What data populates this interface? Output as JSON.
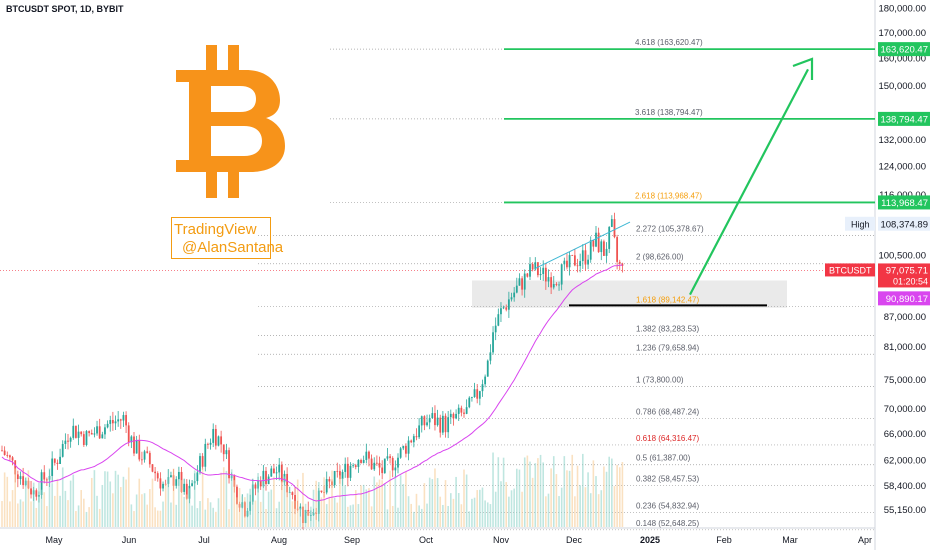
{
  "header": {
    "symbol_title": "BTCUSDT SPOT, 1D, BYBIT"
  },
  "watermark": {
    "line1": "TradingView",
    "line2": "@AlanSantana"
  },
  "colors": {
    "up": "#26a69a",
    "down": "#ef5350",
    "fib_green": "#22c55e",
    "ma": "#d946ef",
    "price_label": "#f23645",
    "arrow": "#22c55e",
    "bitcoin": "#f7931a",
    "wedge": "#3fb8d4"
  },
  "logo": {
    "icon": "bitcoin-logo"
  },
  "high_label": {
    "label": "High",
    "value": "108,374.89"
  },
  "current_price": {
    "symbol": "BTCUSDT",
    "value": "97,075.71",
    "countdown": "01:20:54"
  },
  "ma_label": {
    "value": "90,890.17"
  },
  "chart_data": {
    "type": "candlestick",
    "title": "BTCUSDT SPOT, 1D, BYBIT",
    "yscale": "log",
    "ylim": [
      53000,
      182000
    ],
    "x_labels": [
      "May",
      "Jun",
      "Jul",
      "Aug",
      "Sep",
      "Oct",
      "Nov",
      "Dec",
      "2025",
      "Feb",
      "Mar",
      "Apr"
    ],
    "y_ticks": [
      "180,000.00",
      "170,000.00",
      "160,000.00",
      "150,000.00",
      "132,000.00",
      "124,000.00",
      "116,000.00",
      "100,500.00",
      "87,000.00",
      "81,000.00",
      "75,000.00",
      "70,000.00",
      "66,000.00",
      "62,000.00",
      "58,400.00",
      "55,150.00"
    ],
    "fib_levels": [
      {
        "ratio": "4.618",
        "value": 163620.47,
        "label": "4.618 (163,620.47)",
        "axis_label": "163,620.47",
        "highlight": true
      },
      {
        "ratio": "3.618",
        "value": 138794.47,
        "label": "3.618 (138,794.47)",
        "axis_label": "138,794.47",
        "highlight": true
      },
      {
        "ratio": "2.618",
        "value": 113968.47,
        "label": "2.618 (113,968.47)",
        "axis_label": "113,968.47",
        "highlight": true
      },
      {
        "ratio": "2.272",
        "value": 105378.67,
        "label": "2.272 (105,378.67)"
      },
      {
        "ratio": "2",
        "value": 98626.0,
        "label": "2 (98,626.00)"
      },
      {
        "ratio": "1.618",
        "value": 89142.47,
        "label": "1.618 (89,142.47)"
      },
      {
        "ratio": "1.382",
        "value": 83283.53,
        "label": "1.382 (83,283.53)"
      },
      {
        "ratio": "1.236",
        "value": 79658.94,
        "label": "1.236 (79,658.94)"
      },
      {
        "ratio": "1",
        "value": 73800.0,
        "label": "1 (73,800.00)"
      },
      {
        "ratio": "0.786",
        "value": 68487.24,
        "label": "0.786 (68,487.24)"
      },
      {
        "ratio": "0.618",
        "value": 64316.47,
        "label": "0.618 (64,316.47)"
      },
      {
        "ratio": "0.5",
        "value": 61387.0,
        "label": "0.5 (61,387.00)"
      },
      {
        "ratio": "0.382",
        "value": 58457.53,
        "label": "0.382 (58,457.53)"
      },
      {
        "ratio": "0.236",
        "value": 54832.94,
        "label": "0.236 (54,832.94)"
      },
      {
        "ratio": "0.148",
        "value": 52648.25,
        "label": "0.148 (52,648.25)"
      }
    ],
    "high": 108374.89,
    "last_price": 97075.71,
    "ma_value": 90890.17,
    "support_zone": [
      88900,
      94800
    ],
    "support_line": 89400,
    "series_anchors": [
      {
        "t": 0,
        "price": 63500
      },
      {
        "t": 6,
        "price": 60500
      },
      {
        "t": 12,
        "price": 57500
      },
      {
        "t": 20,
        "price": 61500
      },
      {
        "t": 26,
        "price": 67000
      },
      {
        "t": 32,
        "price": 65500
      },
      {
        "t": 40,
        "price": 67500
      },
      {
        "t": 46,
        "price": 68500
      },
      {
        "t": 50,
        "price": 64000
      },
      {
        "t": 56,
        "price": 61500
      },
      {
        "t": 62,
        "price": 58000
      },
      {
        "t": 66,
        "price": 60000
      },
      {
        "t": 70,
        "price": 56500
      },
      {
        "t": 76,
        "price": 62500
      },
      {
        "t": 80,
        "price": 66500
      },
      {
        "t": 84,
        "price": 64000
      },
      {
        "t": 88,
        "price": 58000
      },
      {
        "t": 92,
        "price": 55500
      },
      {
        "t": 98,
        "price": 59500
      },
      {
        "t": 104,
        "price": 60500
      },
      {
        "t": 110,
        "price": 57500
      },
      {
        "t": 114,
        "price": 54500
      },
      {
        "t": 118,
        "price": 55500
      },
      {
        "t": 124,
        "price": 58500
      },
      {
        "t": 130,
        "price": 60500
      },
      {
        "t": 136,
        "price": 63000
      },
      {
        "t": 140,
        "price": 61500
      },
      {
        "t": 144,
        "price": 60500
      },
      {
        "t": 150,
        "price": 62500
      },
      {
        "t": 156,
        "price": 66000
      },
      {
        "t": 162,
        "price": 68500
      },
      {
        "t": 168,
        "price": 67500
      },
      {
        "t": 172,
        "price": 68500
      },
      {
        "t": 176,
        "price": 69500
      },
      {
        "t": 180,
        "price": 72500
      },
      {
        "t": 184,
        "price": 78000
      },
      {
        "t": 186,
        "price": 84000
      },
      {
        "t": 189,
        "price": 88000
      },
      {
        "t": 193,
        "price": 91500
      },
      {
        "t": 197,
        "price": 94500
      },
      {
        "t": 201,
        "price": 97500
      },
      {
        "t": 205,
        "price": 96000
      },
      {
        "t": 209,
        "price": 95500
      },
      {
        "t": 213,
        "price": 97000
      },
      {
        "t": 217,
        "price": 99500
      },
      {
        "t": 221,
        "price": 100500
      },
      {
        "t": 225,
        "price": 104000
      },
      {
        "t": 228,
        "price": 101500
      },
      {
        "t": 231,
        "price": 107000
      },
      {
        "t": 233,
        "price": 99000
      },
      {
        "t": 235,
        "price": 97000
      }
    ]
  }
}
